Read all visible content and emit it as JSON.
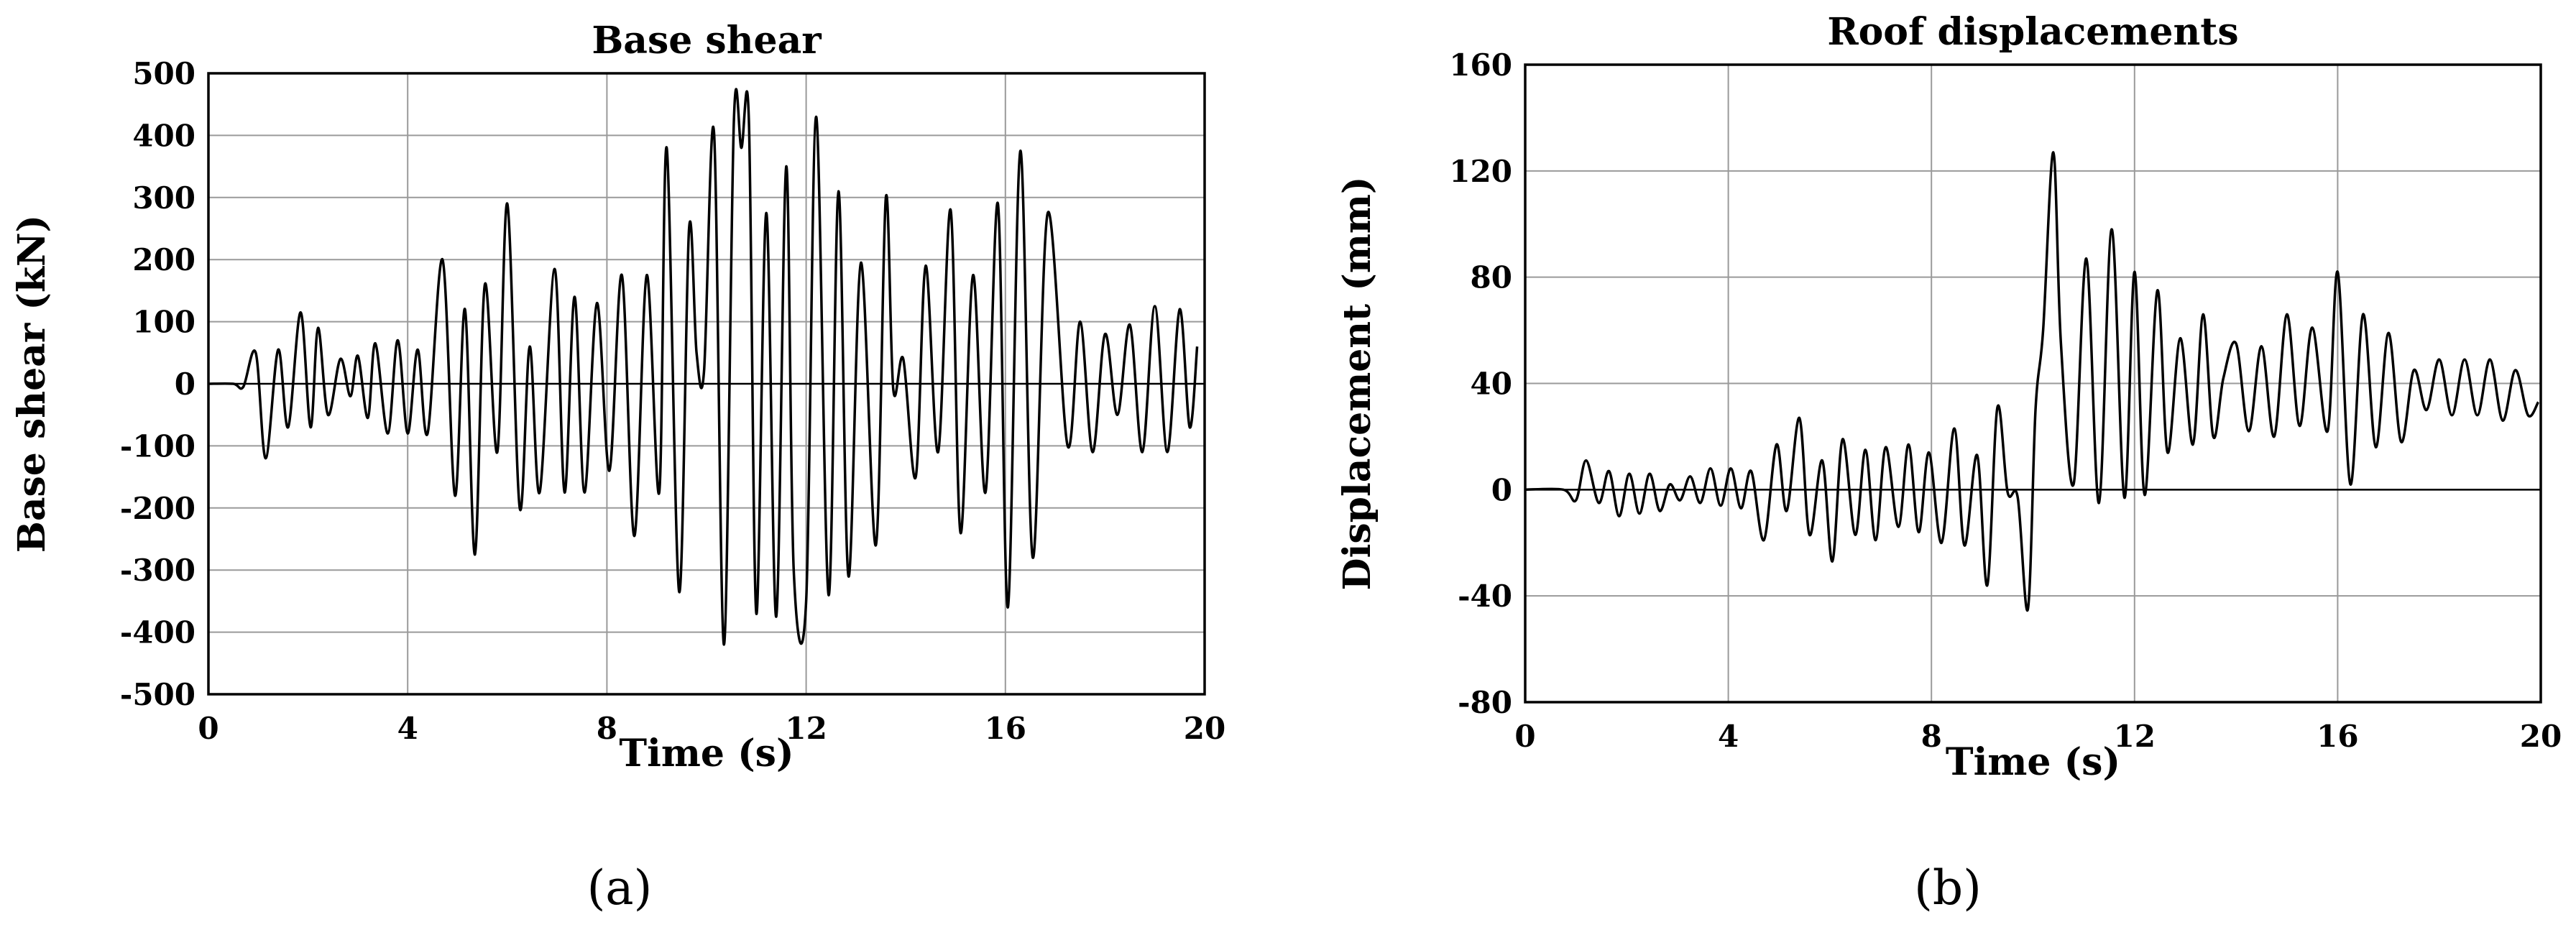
{
  "chart_data": [
    {
      "type": "line",
      "title": "Base shear",
      "xlabel": "Time (s)",
      "ylabel": "Base shear (kN)",
      "xlim": [
        0,
        20
      ],
      "ylim": [
        -500,
        500
      ],
      "xticks": [
        0,
        4,
        8,
        12,
        16,
        20
      ],
      "yticks": [
        500,
        400,
        300,
        200,
        100,
        0,
        -100,
        -200,
        -300,
        -400,
        -500
      ],
      "grid": true,
      "caption": "(a)",
      "series": [
        {
          "x": [
            0,
            0.5,
            0.7,
            0.95,
            1.15,
            1.4,
            1.6,
            1.85,
            2.05,
            2.2,
            2.4,
            2.65,
            2.85,
            3.0,
            3.2,
            3.35,
            3.6,
            3.8,
            4.0,
            4.2,
            4.4,
            4.7,
            4.95,
            5.15,
            5.35,
            5.55,
            5.8,
            6.0,
            6.25,
            6.45,
            6.65,
            6.95,
            7.15,
            7.35,
            7.55,
            7.8,
            8.05,
            8.3,
            8.55,
            8.8,
            9.05,
            9.2,
            9.45,
            9.65,
            9.8,
            9.95,
            10.15,
            10.35,
            10.55,
            10.7,
            10.85,
            11.0,
            11.2,
            11.4,
            11.6,
            11.75,
            12.0,
            12.2,
            12.45,
            12.65,
            12.85,
            13.1,
            13.4,
            13.6,
            13.75,
            13.95,
            14.2,
            14.4,
            14.65,
            14.9,
            15.1,
            15.35,
            15.6,
            15.85,
            16.05,
            16.3,
            16.55,
            16.85,
            17.25,
            17.5,
            17.75,
            18.0,
            18.25,
            18.5,
            18.75,
            19.0,
            19.25,
            19.5,
            19.7,
            19.85
          ],
          "y": [
            0,
            0,
            -5,
            50,
            -120,
            55,
            -70,
            115,
            -70,
            90,
            -50,
            40,
            -20,
            45,
            -55,
            65,
            -80,
            70,
            -80,
            55,
            -80,
            200,
            -180,
            120,
            -275,
            160,
            -110,
            290,
            -200,
            60,
            -175,
            185,
            -175,
            140,
            -175,
            130,
            -140,
            175,
            -245,
            175,
            -175,
            380,
            -335,
            250,
            50,
            20,
            405,
            -420,
            425,
            380,
            425,
            -370,
            275,
            -375,
            350,
            -300,
            -350,
            430,
            -340,
            310,
            -310,
            195,
            -260,
            300,
            -10,
            40,
            -150,
            190,
            -110,
            280,
            -240,
            175,
            -175,
            290,
            -360,
            375,
            -280,
            275,
            -100,
            100,
            -110,
            80,
            -50,
            95,
            -110,
            125,
            -110,
            120,
            -70,
            60
          ]
        }
      ]
    },
    {
      "type": "line",
      "title": "Roof displacements",
      "xlabel": "Time (s)",
      "ylabel": "Displacement (mm)",
      "xlim": [
        0,
        20
      ],
      "ylim": [
        -80,
        160
      ],
      "xticks": [
        0,
        4,
        8,
        12,
        16,
        20
      ],
      "yticks": [
        160,
        120,
        80,
        40,
        0,
        -40,
        -80
      ],
      "grid": true,
      "caption": "(b)",
      "series": [
        {
          "x": [
            0,
            0.75,
            1.0,
            1.2,
            1.45,
            1.65,
            1.85,
            2.05,
            2.25,
            2.45,
            2.65,
            2.85,
            3.05,
            3.25,
            3.45,
            3.65,
            3.85,
            4.05,
            4.25,
            4.45,
            4.7,
            4.95,
            5.15,
            5.4,
            5.6,
            5.85,
            6.05,
            6.25,
            6.5,
            6.7,
            6.9,
            7.1,
            7.35,
            7.55,
            7.75,
            7.95,
            8.2,
            8.45,
            8.65,
            8.9,
            9.1,
            9.3,
            9.5,
            9.7,
            9.9,
            10.05,
            10.2,
            10.4,
            10.55,
            10.8,
            11.05,
            11.3,
            11.55,
            11.8,
            12.0,
            12.2,
            12.45,
            12.65,
            12.9,
            13.15,
            13.35,
            13.55,
            13.75,
            14.0,
            14.25,
            14.5,
            14.75,
            15.0,
            15.25,
            15.5,
            15.8,
            16.0,
            16.25,
            16.5,
            16.75,
            17.0,
            17.25,
            17.5,
            17.75,
            18.0,
            18.25,
            18.5,
            18.75,
            19.0,
            19.25,
            19.5,
            19.75,
            19.95
          ],
          "y": [
            0,
            0,
            -4,
            11,
            -5,
            7,
            -10,
            6,
            -9,
            6,
            -8,
            2,
            -4,
            5,
            -5,
            8,
            -6,
            8,
            -7,
            7,
            -19,
            17,
            -8,
            27,
            -17,
            11,
            -27,
            19,
            -17,
            15,
            -19,
            16,
            -14,
            17,
            -16,
            14,
            -20,
            23,
            -21,
            13,
            -36,
            31,
            -1,
            -3,
            -45,
            30,
            60,
            127,
            55,
            2,
            87,
            -5,
            98,
            -3,
            82,
            -2,
            75,
            14,
            57,
            17,
            66,
            20,
            42,
            55,
            22,
            54,
            20,
            66,
            24,
            61,
            22,
            82,
            2,
            66,
            16,
            59,
            18,
            45,
            30,
            49,
            28,
            49,
            28,
            49,
            26,
            45,
            28,
            33
          ]
        }
      ]
    }
  ]
}
